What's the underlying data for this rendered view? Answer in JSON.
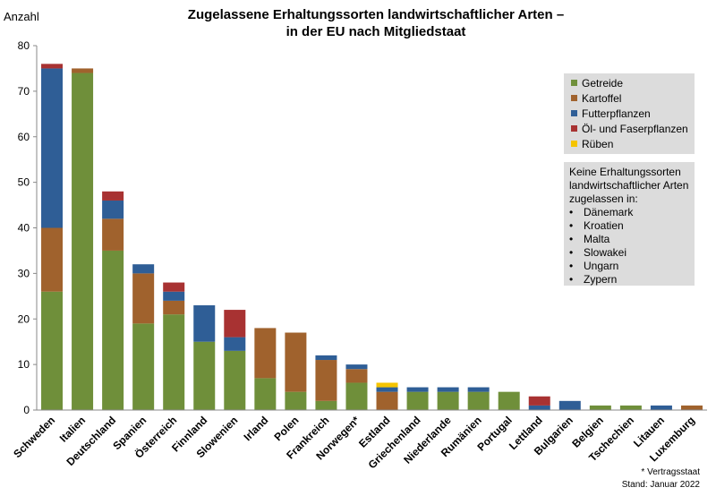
{
  "title_line1": "Zugelassene Erhaltungssorten landwirtschaftlicher Arten –",
  "title_line2": "in der EU nach Mitgliedstaat",
  "footnote": "* Vertragsstaat",
  "stand": "Stand: Januar 2022",
  "legend_title": "",
  "note": {
    "lines": [
      "Keine Erhaltungssorten",
      "landwirtschaftlicher Arten",
      "zugelassen in:"
    ],
    "bullet": "•",
    "items": [
      "Dänemark",
      "Kroatien",
      "Malta",
      "Slowakei",
      "Ungarn",
      "Zypern"
    ]
  },
  "chart_data": {
    "type": "bar",
    "stacked": true,
    "title": "Zugelassene Erhaltungssorten landwirtschaftlicher Arten – in der EU nach Mitgliedstaat",
    "ylabel": "Anzahl",
    "xlabel": "",
    "ylim": [
      0,
      80
    ],
    "yticks": [
      0,
      10,
      20,
      30,
      40,
      50,
      60,
      70,
      80
    ],
    "grid": false,
    "legend_position": "right",
    "categories": [
      "Schweden",
      "Italien",
      "Deutschland",
      "Spanien",
      "Österreich",
      "Finnland",
      "Slowenien",
      "Irland",
      "Polen",
      "Frankreich",
      "Norwegen*",
      "Estland",
      "Griechenland",
      "Niederlande",
      "Rumänien",
      "Portugal",
      "Lettland",
      "Bulgarien",
      "Belgien",
      "Tschechien",
      "Litauen",
      "Luxemburg"
    ],
    "series": [
      {
        "name": "Getreide",
        "color": "#6f8f3a",
        "values": [
          26,
          74,
          35,
          19,
          21,
          15,
          13,
          7,
          4,
          2,
          6,
          0,
          4,
          4,
          4,
          4,
          0,
          0,
          1,
          1,
          0,
          0
        ]
      },
      {
        "name": "Kartoffel",
        "color": "#a0622d",
        "values": [
          14,
          1,
          7,
          11,
          3,
          0,
          0,
          11,
          13,
          9,
          3,
          4,
          0,
          0,
          0,
          0,
          0,
          0,
          0,
          0,
          0,
          1
        ]
      },
      {
        "name": "Futterpflanzen",
        "color": "#2f5e96",
        "values": [
          35,
          0,
          4,
          2,
          2,
          8,
          3,
          0,
          0,
          1,
          1,
          1,
          1,
          1,
          1,
          0,
          1,
          2,
          0,
          0,
          1,
          0
        ]
      },
      {
        "name": "Öl- und Faserpflanzen",
        "color": "#a83232",
        "values": [
          1,
          0,
          2,
          0,
          2,
          0,
          6,
          0,
          0,
          0,
          0,
          0,
          0,
          0,
          0,
          0,
          2,
          0,
          0,
          0,
          0,
          0
        ]
      },
      {
        "name": "Rüben",
        "color": "#f5c400",
        "values": [
          0,
          0,
          0,
          0,
          0,
          0,
          0,
          0,
          0,
          0,
          0,
          1,
          0,
          0,
          0,
          0,
          0,
          0,
          0,
          0,
          0,
          0
        ]
      }
    ]
  }
}
